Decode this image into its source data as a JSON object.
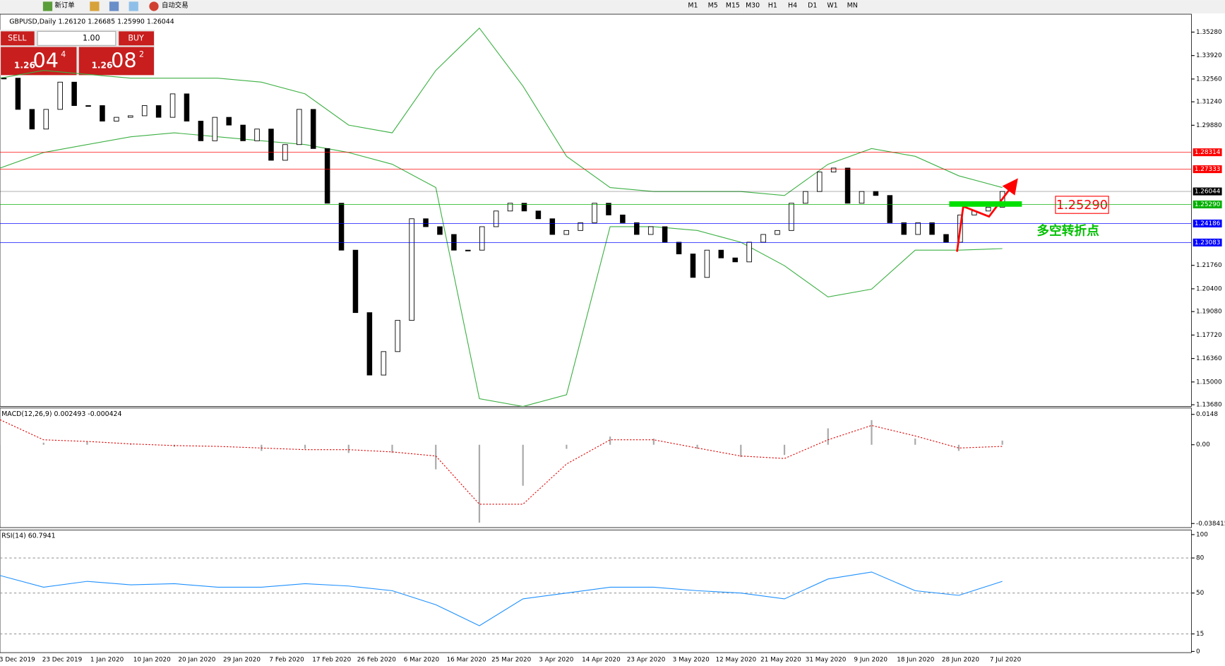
{
  "toolbar": {
    "buttons": [
      "新订单",
      "自动交易"
    ],
    "timeframes": [
      "M1",
      "M5",
      "M15",
      "M30",
      "H1",
      "H4",
      "D1",
      "W1",
      "MN"
    ]
  },
  "trade_panel": {
    "sell": "SELL",
    "buy": "BUY",
    "lot": "1.00",
    "sell_price": {
      "big": "1.26",
      "pips": "04",
      "point": "4"
    },
    "buy_price": {
      "big": "1.26",
      "pips": "08",
      "point": "2"
    }
  },
  "chart_data": [
    {
      "type": "candlestick",
      "title": "GBPUSD,Daily  1.26120 1.26685 1.25990 1.26044",
      "closes": [
        1.3261,
        1.308,
        1.2966,
        1.308,
        1.3238,
        1.3102,
        1.3102,
        1.3012,
        1.3034,
        1.3043,
        1.3102,
        1.3034,
        1.317,
        1.3012,
        1.2898,
        1.3034,
        1.2989,
        1.2898,
        1.2966,
        1.2785,
        1.2876,
        1.308,
        1.2853,
        1.2536,
        1.2264,
        1.1902,
        1.154,
        1.1676,
        1.1857,
        1.2446,
        1.24,
        1.2355,
        1.2264,
        1.2264,
        1.24,
        1.2491,
        1.2536,
        1.2491,
        1.2446,
        1.2355,
        1.2378,
        1.2423,
        1.2536,
        1.2468,
        1.2423,
        1.2355,
        1.24,
        1.231,
        1.2242,
        1.2106,
        1.2264,
        1.2219,
        1.2196,
        1.231,
        1.2355,
        1.2378,
        1.2536,
        1.2604,
        1.2717,
        1.274,
        1.2536,
        1.2604,
        1.2581,
        1.2423,
        1.2355,
        1.2423,
        1.2355,
        1.231,
        1.2468,
        1.2491,
        1.2513,
        1.2604
      ],
      "upper_band": [
        1.3261,
        1.3306,
        1.3283,
        1.3261,
        1.3261,
        1.3261,
        1.3238,
        1.317,
        1.2989,
        1.2944,
        1.3306,
        1.3551,
        1.3215,
        1.2808,
        1.2627,
        1.2604,
        1.2604,
        1.2604,
        1.2581,
        1.2762,
        1.2853,
        1.2808,
        1.2695,
        1.2627
      ],
      "lower_band": [
        1.274,
        1.283,
        1.2876,
        1.2921,
        1.2944,
        1.2921,
        1.2898,
        1.2876,
        1.283,
        1.2762,
        1.2627,
        1.1403,
        1.1358,
        1.1426,
        1.24,
        1.24,
        1.2378,
        1.231,
        1.2174,
        1.1993,
        1.2038,
        1.2264,
        1.2264,
        1.2273
      ],
      "ylim": [
        1.1358,
        1.3632
      ],
      "yticks": [
        {
          "value": 1.3528,
          "label": "1.35280"
        },
        {
          "value": 1.3392,
          "label": "1.33920"
        },
        {
          "value": 1.3256,
          "label": "1.32560"
        },
        {
          "value": 1.3124,
          "label": "1.31240"
        },
        {
          "value": 1.2988,
          "label": "1.29880"
        },
        {
          "value": 1.2176,
          "label": "1.21760"
        },
        {
          "value": 1.204,
          "label": "1.20400"
        },
        {
          "value": 1.1908,
          "label": "1.19080"
        },
        {
          "value": 1.1772,
          "label": "1.17720"
        },
        {
          "value": 1.1636,
          "label": "1.16360"
        },
        {
          "value": 1.15,
          "label": "1.15000"
        },
        {
          "value": 1.1368,
          "label": "1.13680"
        }
      ],
      "levels": [
        {
          "value": 1.28314,
          "color": "#ff0000"
        },
        {
          "value": 1.27333,
          "color": "#ff0000"
        },
        {
          "value": 1.26044,
          "color": "#000000"
        },
        {
          "value": 1.2529,
          "label": "1.25290",
          "color": "#00b000"
        },
        {
          "value": 1.24186,
          "color": "#0000ff"
        },
        {
          "value": 1.23083,
          "color": "#0000ff"
        }
      ],
      "annotation": "1.25290",
      "annotation_note": "多空转折点"
    },
    {
      "type": "macd",
      "title": "MACD(12,26,9) 0.002493 -0.000424",
      "histogram": [
        0.012,
        0.001,
        0.0015,
        0.0005,
        -0.001,
        0,
        -0.003,
        -0.002,
        -0.004,
        -0.004,
        -0.012,
        -0.038,
        -0.02,
        -0.002,
        0.004,
        0.003,
        -0.002,
        -0.006,
        -0.005,
        0.008,
        0.012,
        0.003,
        -0.003,
        0.002
      ],
      "signal": [
        0.0122,
        0.0024,
        0.0016,
        0.0004,
        -0.0004,
        -0.0008,
        -0.0016,
        -0.0024,
        -0.0024,
        -0.0035,
        -0.0055,
        -0.029,
        -0.029,
        -0.0094,
        0.0024,
        0.0024,
        -0.0016,
        -0.0055,
        -0.0067,
        0.0024,
        0.0094,
        0.0043,
        -0.0016,
        -0.0008
      ],
      "ylim": [
        -0.0404,
        0.0179
      ],
      "yticks": [
        0.0148,
        {
          "value": 0,
          "label": "0.00"
        },
        -0.038415
      ]
    },
    {
      "type": "rsi",
      "title": "RSI(14) 60.7941",
      "values": [
        65,
        55,
        60,
        57,
        58,
        55,
        55,
        58,
        56,
        52,
        40,
        22,
        45,
        50,
        55,
        55,
        52,
        50,
        45,
        62,
        68,
        52,
        48,
        60
      ],
      "ylim": [
        -1,
        104
      ],
      "yticks": [
        100,
        80,
        50,
        15,
        0
      ]
    }
  ],
  "date_labels": [
    "3 Dec 2019",
    "23 Dec 2019",
    "1 Jan 2020",
    "10 Jan 2020",
    "20 Jan 2020",
    "29 Jan 2020",
    "7 Feb 2020",
    "17 Feb 2020",
    "26 Feb 2020",
    "6 Mar 2020",
    "16 Mar 2020",
    "25 Mar 2020",
    "3 Apr 2020",
    "14 Apr 2020",
    "23 Apr 2020",
    "3 May 2020",
    "12 May 2020",
    "21 May 2020",
    "31 May 2020",
    "9 Jun 2020",
    "18 Jun 2020",
    "28 Jun 2020",
    "7 Jul 2020"
  ]
}
